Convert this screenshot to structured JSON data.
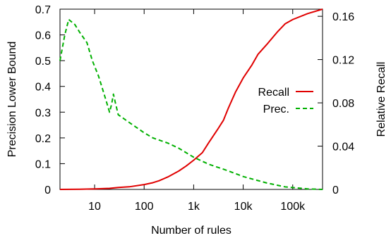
{
  "chart_data": {
    "type": "line",
    "xlabel": "Number of rules",
    "ylabel_left": "Precision Lower Bound",
    "ylabel_right": "Relative Recall",
    "x_scale": "log",
    "xlim": [
      2,
      400000
    ],
    "ylim_left": [
      0,
      0.7
    ],
    "ylim_right": [
      0,
      0.1666
    ],
    "grid": false,
    "legend_position": "middle-right",
    "x_ticks": [
      {
        "value": 10,
        "label": "10"
      },
      {
        "value": 100,
        "label": "100"
      },
      {
        "value": 1000,
        "label": "1k"
      },
      {
        "value": 10000,
        "label": "10k"
      },
      {
        "value": 100000,
        "label": "100k"
      }
    ],
    "y_ticks_left": [
      {
        "value": 0,
        "label": "0"
      },
      {
        "value": 0.1,
        "label": "0.1"
      },
      {
        "value": 0.2,
        "label": "0.2"
      },
      {
        "value": 0.3,
        "label": "0.3"
      },
      {
        "value": 0.4,
        "label": "0.4"
      },
      {
        "value": 0.5,
        "label": "0.5"
      },
      {
        "value": 0.6,
        "label": "0.6"
      },
      {
        "value": 0.7,
        "label": "0.7"
      }
    ],
    "y_ticks_right": [
      {
        "value": 0,
        "label": "0"
      },
      {
        "value": 0.04,
        "label": "0.04"
      },
      {
        "value": 0.08,
        "label": "0.08"
      },
      {
        "value": 0.12,
        "label": "0.12"
      },
      {
        "value": 0.16,
        "label": "0.16"
      }
    ],
    "series": [
      {
        "name": "Recall",
        "axis": "right",
        "color": "#e00000",
        "dash": "solid",
        "points": [
          [
            2,
            0
          ],
          [
            5,
            0.0002
          ],
          [
            10,
            0.0005
          ],
          [
            20,
            0.001
          ],
          [
            30,
            0.0018
          ],
          [
            50,
            0.0024
          ],
          [
            100,
            0.0045
          ],
          [
            150,
            0.0062
          ],
          [
            200,
            0.008
          ],
          [
            300,
            0.0115
          ],
          [
            500,
            0.017
          ],
          [
            700,
            0.0215
          ],
          [
            1000,
            0.027
          ],
          [
            1500,
            0.034
          ],
          [
            2000,
            0.043
          ],
          [
            3000,
            0.055
          ],
          [
            4000,
            0.064
          ],
          [
            5000,
            0.075
          ],
          [
            7000,
            0.09
          ],
          [
            10000,
            0.103
          ],
          [
            15000,
            0.115
          ],
          [
            20000,
            0.125
          ],
          [
            30000,
            0.134
          ],
          [
            50000,
            0.146
          ],
          [
            70000,
            0.153
          ],
          [
            100000,
            0.157
          ],
          [
            200000,
            0.1625
          ],
          [
            400000,
            0.1666
          ]
        ]
      },
      {
        "name": "Prec.",
        "axis": "left",
        "color": "#00b000",
        "dash": "dashed",
        "points": [
          [
            2,
            0.5
          ],
          [
            2.5,
            0.6
          ],
          [
            3,
            0.66
          ],
          [
            4,
            0.64
          ],
          [
            5,
            0.61
          ],
          [
            7,
            0.57
          ],
          [
            9,
            0.5
          ],
          [
            12,
            0.44
          ],
          [
            15,
            0.38
          ],
          [
            18,
            0.33
          ],
          [
            20,
            0.3
          ],
          [
            22,
            0.33
          ],
          [
            24,
            0.37
          ],
          [
            26,
            0.34
          ],
          [
            30,
            0.29
          ],
          [
            50,
            0.26
          ],
          [
            100,
            0.22
          ],
          [
            150,
            0.2
          ],
          [
            300,
            0.18
          ],
          [
            500,
            0.16
          ],
          [
            1000,
            0.125
          ],
          [
            2000,
            0.098
          ],
          [
            5000,
            0.072
          ],
          [
            10000,
            0.05
          ],
          [
            30000,
            0.025
          ],
          [
            70000,
            0.01
          ],
          [
            200000,
            0.002
          ],
          [
            400000,
            0
          ]
        ]
      }
    ]
  }
}
